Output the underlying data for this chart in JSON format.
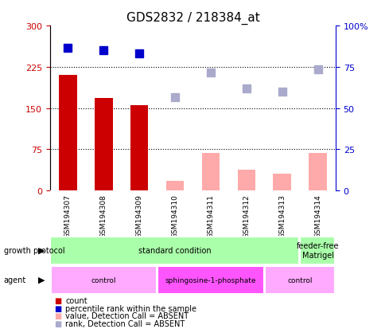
{
  "title": "GDS2832 / 218384_at",
  "samples": [
    "GSM194307",
    "GSM194308",
    "GSM194309",
    "GSM194310",
    "GSM194311",
    "GSM194312",
    "GSM194313",
    "GSM194314"
  ],
  "count_values": [
    210,
    168,
    155,
    null,
    null,
    null,
    null,
    null
  ],
  "count_absent_values": [
    null,
    null,
    null,
    18,
    68,
    38,
    30,
    68
  ],
  "rank_values": [
    260,
    255,
    250,
    null,
    null,
    null,
    null,
    null
  ],
  "rank_absent_values": [
    null,
    null,
    null,
    170,
    215,
    185,
    180,
    220
  ],
  "left_yticks": [
    0,
    75,
    150,
    225,
    300
  ],
  "right_yticks": [
    0,
    25,
    50,
    75,
    100
  ],
  "left_ylabel_color": "#cc0000",
  "right_ylabel_color": "#0000cc",
  "bar_color_present": "#cc0000",
  "bar_color_absent": "#ffaaaa",
  "rank_color_present": "#0000cc",
  "rank_color_absent": "#aaaacc",
  "gp_groups": [
    {
      "label": "standard condition",
      "start": 0,
      "end": 7,
      "color": "#aaffaa"
    },
    {
      "label": "feeder-free\nMatrigel",
      "start": 7,
      "end": 8,
      "color": "#aaffaa"
    }
  ],
  "agent_groups": [
    {
      "label": "control",
      "start": 0,
      "end": 3,
      "color": "#ffaaff"
    },
    {
      "label": "sphingosine-1-phosphate",
      "start": 3,
      "end": 6,
      "color": "#ff55ff"
    },
    {
      "label": "control",
      "start": 6,
      "end": 8,
      "color": "#ffaaff"
    }
  ],
  "legend_items": [
    {
      "label": "count",
      "color": "#cc0000"
    },
    {
      "label": "percentile rank within the sample",
      "color": "#0000cc"
    },
    {
      "label": "value, Detection Call = ABSENT",
      "color": "#ffaaaa"
    },
    {
      "label": "rank, Detection Call = ABSENT",
      "color": "#aaaacc"
    }
  ],
  "hlines": [
    75,
    150,
    225
  ],
  "ylim_left": [
    0,
    300
  ],
  "ylim_right": [
    0,
    100
  ],
  "plot_bg_color": "#ffffff"
}
